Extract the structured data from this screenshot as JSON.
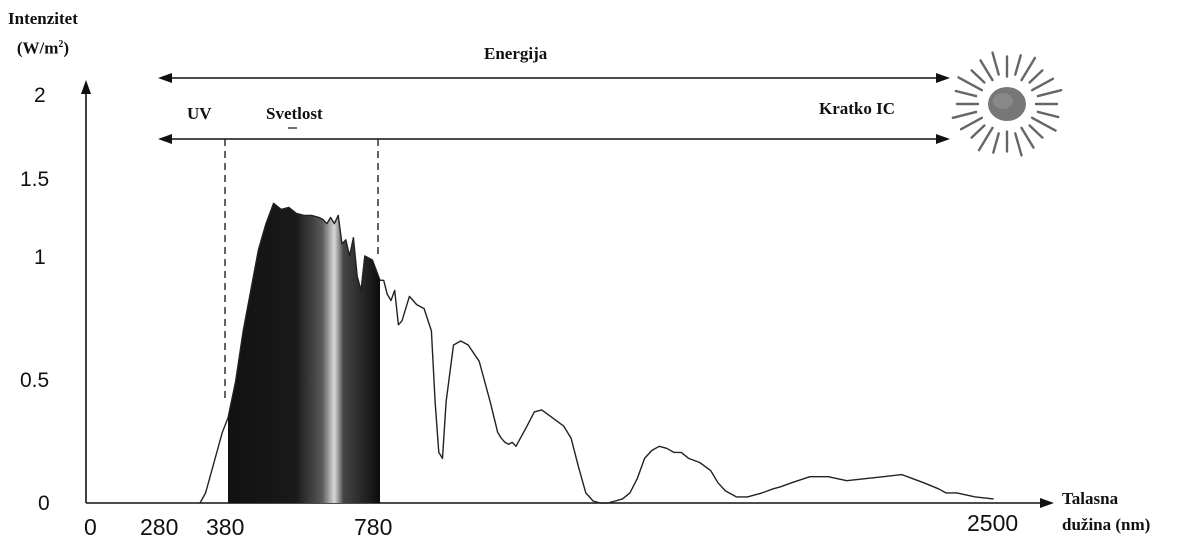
{
  "chart_data": {
    "type": "area",
    "ylabel_line1": "Intenzitet",
    "ylabel_line2": "(W/m",
    "ylabel_sup": "2",
    "ylabel_close": ")",
    "xlabel_line1": "Talasna",
    "xlabel_line2": "dužina (nm)",
    "yticks": [
      "0",
      "0.5",
      "1",
      "1.5",
      "2"
    ],
    "xticks": [
      "0",
      "280",
      "380",
      "780",
      "2500"
    ],
    "ylim": [
      0,
      2
    ],
    "grid": false,
    "bands": {
      "energy": "Energija",
      "uv": "UV",
      "visible": "Svetlost",
      "short_ir": "Kratko IC"
    },
    "visible_range": [
      380,
      780
    ],
    "series": [
      {
        "x": [
          280,
          300,
          330,
          360,
          380,
          400,
          420,
          440,
          460,
          480,
          500,
          520,
          540,
          560,
          580,
          600,
          620,
          630,
          640,
          650,
          660,
          670,
          680,
          690,
          700,
          710,
          720,
          730,
          740,
          760,
          780,
          790,
          800,
          810,
          820,
          830,
          840,
          860,
          880,
          900,
          920,
          930,
          940,
          950,
          960,
          980,
          1000,
          1020,
          1050,
          1080,
          1100,
          1110,
          1120,
          1130,
          1140,
          1150,
          1180,
          1200,
          1220,
          1250,
          1280,
          1300,
          1320,
          1340,
          1360,
          1380,
          1400,
          1420,
          1440,
          1460,
          1480,
          1500,
          1520,
          1540,
          1560,
          1580,
          1600,
          1620,
          1650,
          1680,
          1700,
          1720,
          1750,
          1780,
          1800,
          1820,
          1850,
          1870,
          1900,
          1950,
          2000,
          2050,
          2100,
          2150,
          2200,
          2230,
          2260,
          2300,
          2320,
          2350,
          2400,
          2450
        ],
        "values": [
          0.0,
          0.05,
          0.2,
          0.35,
          0.42,
          0.6,
          0.85,
          1.05,
          1.25,
          1.38,
          1.48,
          1.45,
          1.46,
          1.43,
          1.42,
          1.42,
          1.41,
          1.4,
          1.38,
          1.41,
          1.38,
          1.42,
          1.28,
          1.3,
          1.22,
          1.31,
          1.12,
          1.05,
          1.22,
          1.2,
          1.1,
          1.1,
          1.03,
          1.0,
          1.05,
          0.88,
          0.9,
          1.02,
          0.98,
          0.96,
          0.85,
          0.5,
          0.25,
          0.22,
          0.5,
          0.78,
          0.8,
          0.78,
          0.7,
          0.5,
          0.35,
          0.32,
          0.3,
          0.29,
          0.3,
          0.28,
          0.38,
          0.45,
          0.46,
          0.42,
          0.38,
          0.32,
          0.18,
          0.05,
          0.01,
          0.0,
          0.0,
          0.01,
          0.02,
          0.05,
          0.12,
          0.22,
          0.26,
          0.28,
          0.27,
          0.25,
          0.25,
          0.22,
          0.2,
          0.16,
          0.1,
          0.06,
          0.03,
          0.03,
          0.04,
          0.05,
          0.07,
          0.08,
          0.1,
          0.13,
          0.13,
          0.11,
          0.12,
          0.13,
          0.14,
          0.12,
          0.1,
          0.07,
          0.05,
          0.05,
          0.03,
          0.02
        ]
      }
    ],
    "colors": {
      "line": "#222222",
      "fill_dark": "#0c0c0c",
      "fill_light": "#d8d8d8"
    }
  }
}
